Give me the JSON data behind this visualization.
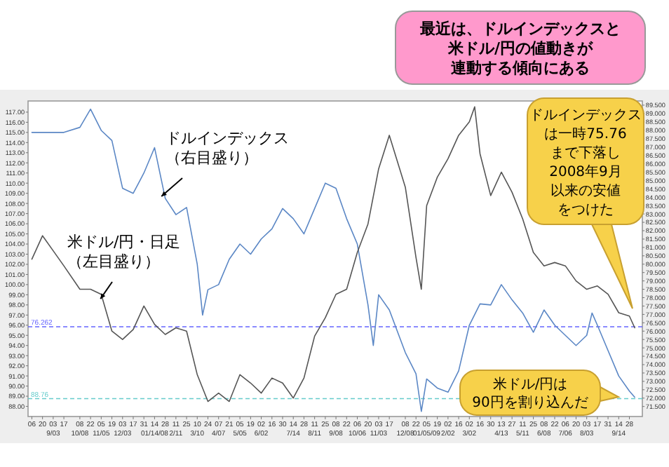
{
  "chart_data": {
    "type": "line",
    "series": [
      {
        "color": "#5b87c5",
        "x": [
          "2007-08-06",
          "2007-08-20",
          "2007-09-03",
          "2007-09-17",
          "2007-10-08",
          "2007-10-22",
          "2007-11-05",
          "2007-11-19",
          "2007-12-03",
          "2007-12-17",
          "2007-12-31",
          "2008-01-14",
          "2008-01-28",
          "2008-02-11",
          "2008-02-25",
          "2008-03-10",
          "2008-03-17",
          "2008-03-24",
          "2008-04-07",
          "2008-04-21",
          "2008-05-05",
          "2008-05-19",
          "2008-06-02",
          "2008-06-16",
          "2008-06-30",
          "2008-07-14",
          "2008-07-28",
          "2008-08-11",
          "2008-08-25",
          "2008-09-08",
          "2008-09-22",
          "2008-10-06",
          "2008-10-20",
          "2008-10-27",
          "2008-11-03",
          "2008-11-17",
          "2008-12-08",
          "2008-12-22",
          "2008-12-29",
          "2009-01-05",
          "2009-01-19",
          "2009-02-02",
          "2009-02-16",
          "2009-03-02",
          "2009-03-16",
          "2009-03-30",
          "2009-04-13",
          "2009-04-27",
          "2009-05-11",
          "2009-05-25",
          "2009-06-08",
          "2009-06-22",
          "2009-07-06",
          "2009-07-20",
          "2009-08-03",
          "2009-08-10",
          "2009-08-17",
          "2009-08-31",
          "2009-09-14",
          "2009-09-28",
          "2009-10-05"
        ],
        "values": [
          115,
          115,
          115,
          115,
          115.5,
          117.3,
          115.2,
          114.2,
          109.5,
          109,
          111,
          113.5,
          108.5,
          106.9,
          107.6,
          102,
          97.0,
          99.5,
          100,
          102.5,
          104,
          103,
          104.5,
          105.5,
          107.5,
          106.5,
          105,
          107.5,
          110,
          109.5,
          106.5,
          104,
          98,
          94,
          99,
          97.5,
          93.3,
          91.2,
          87.5,
          90.7,
          89.8,
          89.4,
          91.5,
          96,
          98.1,
          98,
          100,
          98.5,
          97.2,
          95.3,
          97.5,
          96,
          95,
          94,
          95,
          97.2,
          96,
          93.5,
          91,
          89.5,
          88.9
        ]
      },
      {
        "color": "#555555",
        "axis": "y2",
        "x": [
          "2007-08-06",
          "2007-08-20",
          "2007-09-03",
          "2007-09-17",
          "2007-10-08",
          "2007-10-22",
          "2007-11-05",
          "2007-11-19",
          "2007-12-03",
          "2007-12-17",
          "2007-12-31",
          "2008-01-14",
          "2008-01-28",
          "2008-02-11",
          "2008-02-25",
          "2008-03-10",
          "2008-03-24",
          "2008-04-07",
          "2008-04-21",
          "2008-05-05",
          "2008-05-19",
          "2008-06-02",
          "2008-06-16",
          "2008-06-30",
          "2008-07-14",
          "2008-07-28",
          "2008-08-11",
          "2008-08-25",
          "2008-09-08",
          "2008-09-22",
          "2008-10-06",
          "2008-10-20",
          "2008-11-03",
          "2008-11-17",
          "2008-12-08",
          "2008-12-22",
          "2008-12-29",
          "2009-01-05",
          "2009-01-19",
          "2009-02-02",
          "2009-02-16",
          "2009-03-02",
          "2009-03-09",
          "2009-03-16",
          "2009-03-30",
          "2009-04-13",
          "2009-04-27",
          "2009-05-11",
          "2009-05-25",
          "2009-06-08",
          "2009-06-22",
          "2009-07-06",
          "2009-07-20",
          "2009-08-03",
          "2009-08-17",
          "2009-08-31",
          "2009-09-14",
          "2009-09-28",
          "2009-10-05"
        ],
        "values": [
          80.3,
          81.7,
          80.8,
          79.9,
          78.5,
          78.5,
          78.2,
          76,
          75.5,
          76.1,
          77.5,
          76.4,
          75.8,
          76.2,
          76,
          73.4,
          71.8,
          72.3,
          71.8,
          73.4,
          72.9,
          72.3,
          73.2,
          72.9,
          72,
          73.2,
          75.7,
          76.8,
          78.2,
          78.5,
          80.7,
          82.4,
          85.7,
          87.7,
          84.6,
          80.4,
          78.5,
          83.5,
          85.2,
          86.3,
          87.7,
          88.5,
          89.4,
          86.6,
          84.1,
          85.5,
          84.3,
          82.7,
          80.7,
          79.9,
          80.1,
          79.9,
          79.0,
          78.5,
          78.7,
          78.2,
          77.1,
          76.9,
          76.2
        ]
      }
    ],
    "xlim": [
      "2007-08-01",
      "2009-10-15"
    ],
    "xticks": [
      {
        "value": "2007-08-06",
        "label": "06"
      },
      {
        "value": "2007-08-20",
        "label": "20"
      },
      {
        "value": "2007-09-03",
        "label": "03\n9/03"
      },
      {
        "value": "2007-09-17",
        "label": "17"
      },
      {
        "value": "2007-10-08",
        "label": "08\n10/08"
      },
      {
        "value": "2007-10-22",
        "label": "22"
      },
      {
        "value": "2007-11-05",
        "label": "05\n11/05"
      },
      {
        "value": "2007-11-19",
        "label": "19"
      },
      {
        "value": "2007-12-03",
        "label": "03\n12/03"
      },
      {
        "value": "2007-12-17",
        "label": "17"
      },
      {
        "value": "2007-12-31",
        "label": "31"
      },
      {
        "value": "2008-01-14",
        "label": "14\n01/14/08"
      },
      {
        "value": "2008-01-28",
        "label": "28"
      },
      {
        "value": "2008-02-11",
        "label": "11\n2/11"
      },
      {
        "value": "2008-02-25",
        "label": "25"
      },
      {
        "value": "2008-03-10",
        "label": "10\n3/10"
      },
      {
        "value": "2008-03-24",
        "label": "24"
      },
      {
        "value": "2008-04-07",
        "label": "07\n4/07"
      },
      {
        "value": "2008-04-21",
        "label": "21"
      },
      {
        "value": "2008-05-05",
        "label": "05\n5/05"
      },
      {
        "value": "2008-05-19",
        "label": "19"
      },
      {
        "value": "2008-06-02",
        "label": "02\n6/02"
      },
      {
        "value": "2008-06-16",
        "label": "16"
      },
      {
        "value": "2008-06-30",
        "label": "30"
      },
      {
        "value": "2008-07-14",
        "label": "14\n7/14"
      },
      {
        "value": "2008-07-28",
        "label": "28"
      },
      {
        "value": "2008-08-11",
        "label": "11\n8/11"
      },
      {
        "value": "2008-08-25",
        "label": "25"
      },
      {
        "value": "2008-09-08",
        "label": "08\n9/08"
      },
      {
        "value": "2008-09-22",
        "label": "22"
      },
      {
        "value": "2008-10-06",
        "label": "06\n10/06"
      },
      {
        "value": "2008-10-20",
        "label": "20"
      },
      {
        "value": "2008-11-03",
        "label": "03\n11/03"
      },
      {
        "value": "2008-11-17",
        "label": "17"
      },
      {
        "value": "2008-12-08",
        "label": "08\n12/08"
      },
      {
        "value": "2008-12-22",
        "label": "22"
      },
      {
        "value": "2009-01-05",
        "label": "05\n01/05/09"
      },
      {
        "value": "2009-01-19",
        "label": "19"
      },
      {
        "value": "2009-02-02",
        "label": "02\n2/02"
      },
      {
        "value": "2009-02-16",
        "label": "16"
      },
      {
        "value": "2009-03-02",
        "label": "02\n3/02"
      },
      {
        "value": "2009-03-16",
        "label": "16"
      },
      {
        "value": "2009-03-30",
        "label": "30"
      },
      {
        "value": "2009-04-13",
        "label": "13\n4/13"
      },
      {
        "value": "2009-04-27",
        "label": "27"
      },
      {
        "value": "2009-05-11",
        "label": "11\n5/11"
      },
      {
        "value": "2009-05-25",
        "label": "25"
      },
      {
        "value": "2009-06-08",
        "label": "08\n6/08"
      },
      {
        "value": "2009-06-22",
        "label": "22"
      },
      {
        "value": "2009-07-06",
        "label": "06\n7/06"
      },
      {
        "value": "2009-07-20",
        "label": "20"
      },
      {
        "value": "2009-08-03",
        "label": "03\n8/03"
      },
      {
        "value": "2009-08-17",
        "label": "17"
      },
      {
        "value": "2009-08-31",
        "label": "31"
      },
      {
        "value": "2009-09-14",
        "label": "14\n9/14"
      },
      {
        "value": "2009-09-28",
        "label": "28"
      }
    ],
    "ylim": [
      87.0,
      118.1
    ],
    "yticks": [
      {
        "value": 88,
        "label": "88.00"
      },
      {
        "value": 89,
        "label": "89.00"
      },
      {
        "value": 90,
        "label": "90.00"
      },
      {
        "value": 91,
        "label": "91.00"
      },
      {
        "value": 92,
        "label": "92.00"
      },
      {
        "value": 93,
        "label": "93.00"
      },
      {
        "value": 94,
        "label": "94.00"
      },
      {
        "value": 95,
        "label": "95.00"
      },
      {
        "value": 96,
        "label": "96.00"
      },
      {
        "value": 97,
        "label": "97.00"
      },
      {
        "value": 98,
        "label": "98.00"
      },
      {
        "value": 99,
        "label": "99.00"
      },
      {
        "value": 100,
        "label": "100.00"
      },
      {
        "value": 101,
        "label": "101.00"
      },
      {
        "value": 102,
        "label": "102.00"
      },
      {
        "value": 103,
        "label": "103.00"
      },
      {
        "value": 104,
        "label": "104.00"
      },
      {
        "value": 105,
        "label": "105.00"
      },
      {
        "value": 106,
        "label": "106.00"
      },
      {
        "value": 107,
        "label": "107.00"
      },
      {
        "value": 108,
        "label": "108.00"
      },
      {
        "value": 109,
        "label": "109.00"
      },
      {
        "value": 110,
        "label": "110.00"
      },
      {
        "value": 111,
        "label": "111.00"
      },
      {
        "value": 112,
        "label": "112.00"
      },
      {
        "value": 113,
        "label": "113.00"
      },
      {
        "value": 114,
        "label": "114.00"
      },
      {
        "value": 115,
        "label": "115.00"
      },
      {
        "value": 116,
        "label": "116.00"
      },
      {
        "value": 117,
        "label": "117.00"
      }
    ],
    "y2lim": [
      70.9,
      89.75
    ],
    "y2ticks": [
      {
        "value": 71.5,
        "label": "71.500"
      },
      {
        "value": 72,
        "label": "72.000"
      },
      {
        "value": 72.5,
        "label": "72.500"
      },
      {
        "value": 73,
        "label": "73.000"
      },
      {
        "value": 73.5,
        "label": "73.500"
      },
      {
        "value": 74,
        "label": "74.000"
      },
      {
        "value": 74.5,
        "label": "74.500"
      },
      {
        "value": 75,
        "label": "75.000"
      },
      {
        "value": 75.5,
        "label": "75.500"
      },
      {
        "value": 76,
        "label": "76.000"
      },
      {
        "value": 76.5,
        "label": "76.500"
      },
      {
        "value": 77,
        "label": "77.000"
      },
      {
        "value": 77.5,
        "label": "77.500"
      },
      {
        "value": 78,
        "label": "78.000"
      },
      {
        "value": 78.5,
        "label": "78.500"
      },
      {
        "value": 79,
        "label": "79.000"
      },
      {
        "value": 79.5,
        "label": "79.500"
      },
      {
        "value": 80,
        "label": "80.000"
      },
      {
        "value": 80.5,
        "label": "80.500"
      },
      {
        "value": 81,
        "label": "81.000"
      },
      {
        "value": 81.5,
        "label": "81.500"
      },
      {
        "value": 82,
        "label": "82.000"
      },
      {
        "value": 82.5,
        "label": "82.500"
      },
      {
        "value": 83,
        "label": "83.000"
      },
      {
        "value": 83.5,
        "label": "83.500"
      },
      {
        "value": 84,
        "label": "84.000"
      },
      {
        "value": 84.5,
        "label": "84.500"
      },
      {
        "value": 85,
        "label": "85.000"
      },
      {
        "value": 85.5,
        "label": "85.500"
      },
      {
        "value": 86,
        "label": "86.000"
      },
      {
        "value": 86.5,
        "label": "86.500"
      },
      {
        "value": 87,
        "label": "87.000"
      },
      {
        "value": 87.5,
        "label": "87.500"
      },
      {
        "value": 88,
        "label": "88.000"
      },
      {
        "value": 88.5,
        "label": "88.500"
      },
      {
        "value": 89,
        "label": "89.000"
      },
      {
        "value": 89.5,
        "label": "89.500"
      }
    ],
    "ref_lines": [
      {
        "axis": "y2",
        "value": 76.262,
        "label": "76.262",
        "color": "#6666ff",
        "line_style": "dashed"
      },
      {
        "axis": "y",
        "value": 88.76,
        "label": "88.76",
        "color": "#66cccc",
        "line_style": "dashed"
      }
    ],
    "annotations": [
      "最近は、ドルインデックスと米ドル/円の値動きが連動する傾向にある",
      {
        "text": "ドルインデックス（右目盛り）",
        "x": "2008-01-23",
        "y": 108.7
      },
      {
        "text": "米ドル/円・日足（左目盛り）",
        "x": "2007-11-04",
        "y": 98.6
      },
      "ドルインデックスは一時75.76まで下落し2008年9月以来の安値をつけた",
      "米ドル/円は90円を割り込んだ"
    ]
  }
}
